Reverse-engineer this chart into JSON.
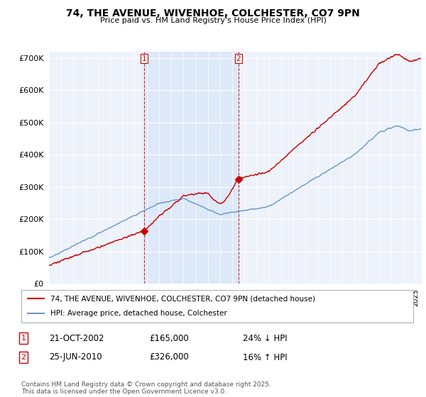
{
  "title": "74, THE AVENUE, WIVENHOE, COLCHESTER, CO7 9PN",
  "subtitle": "Price paid vs. HM Land Registry's House Price Index (HPI)",
  "legend_line1": "74, THE AVENUE, WIVENHOE, COLCHESTER, CO7 9PN (detached house)",
  "legend_line2": "HPI: Average price, detached house, Colchester",
  "footer": "Contains HM Land Registry data © Crown copyright and database right 2025.\nThis data is licensed under the Open Government Licence v3.0.",
  "annotation1_date": "21-OCT-2002",
  "annotation1_price": "£165,000",
  "annotation1_hpi": "24% ↓ HPI",
  "annotation2_date": "25-JUN-2010",
  "annotation2_price": "£326,000",
  "annotation2_hpi": "16% ↑ HPI",
  "price_color": "#cc0000",
  "hpi_color": "#6699cc",
  "shade_color": "#dde8f8",
  "background_color": "#eef2fa",
  "ylim": [
    0,
    720000
  ],
  "yticks": [
    0,
    100000,
    200000,
    300000,
    400000,
    500000,
    600000,
    700000
  ],
  "xlim_start": 1995.0,
  "xlim_end": 2025.5,
  "sale1_x": 2002.8,
  "sale1_y": 165000,
  "sale2_x": 2010.5,
  "sale2_y": 326000
}
